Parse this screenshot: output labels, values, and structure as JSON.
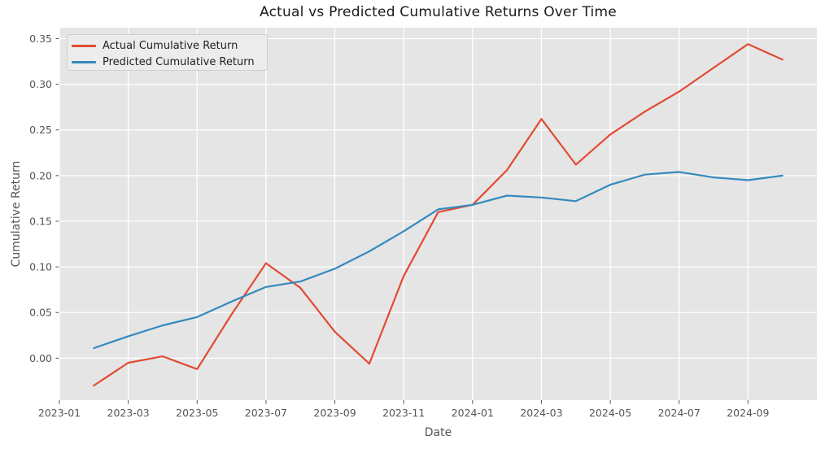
{
  "chart_data": {
    "type": "line",
    "title": "Actual vs Predicted Cumulative Returns Over Time",
    "xlabel": "Date",
    "ylabel": "Cumulative Return",
    "grid": true,
    "legend_position": "upper left",
    "plot_bg_color": "#E5E5E5",
    "grid_color": "#FFFFFF",
    "tick_label_color": "#555555",
    "axis_label_color": "#555555",
    "title_color": "#1A1A1A",
    "legend_bg_color": "#ECECEC",
    "legend_border_color": "#CFCFCF",
    "xlim": [
      "2023-01",
      "2024-11"
    ],
    "ylim": [
      -0.046,
      0.362
    ],
    "xticks": [
      "2023-01",
      "2023-03",
      "2023-05",
      "2023-07",
      "2023-09",
      "2023-11",
      "2024-01",
      "2024-03",
      "2024-05",
      "2024-07",
      "2024-09"
    ],
    "yticks": [
      "0.00",
      "0.05",
      "0.10",
      "0.15",
      "0.20",
      "0.25",
      "0.30",
      "0.35"
    ],
    "x": [
      "2023-02",
      "2023-03",
      "2023-04",
      "2023-05",
      "2023-06",
      "2023-07",
      "2023-08",
      "2023-09",
      "2023-10",
      "2023-11",
      "2023-12",
      "2024-01",
      "2024-02",
      "2024-03",
      "2024-04",
      "2024-05",
      "2024-06",
      "2024-07",
      "2024-08",
      "2024-09",
      "2024-10"
    ],
    "series": [
      {
        "name": "Actual Cumulative Return",
        "color": "#E24A33",
        "values": [
          -0.03,
          -0.005,
          0.002,
          -0.012,
          0.048,
          0.104,
          0.077,
          0.029,
          -0.006,
          0.09,
          0.16,
          0.168,
          0.206,
          0.262,
          0.212,
          0.245,
          0.27,
          0.292,
          0.318,
          0.344,
          0.327
        ]
      },
      {
        "name": "Predicted Cumulative Return",
        "color": "#348ABD",
        "values": [
          0.011,
          0.024,
          0.036,
          0.045,
          0.062,
          0.078,
          0.084,
          0.098,
          0.117,
          0.139,
          0.163,
          0.168,
          0.178,
          0.176,
          0.172,
          0.19,
          0.201,
          0.204,
          0.198,
          0.195,
          0.2
        ]
      }
    ]
  }
}
